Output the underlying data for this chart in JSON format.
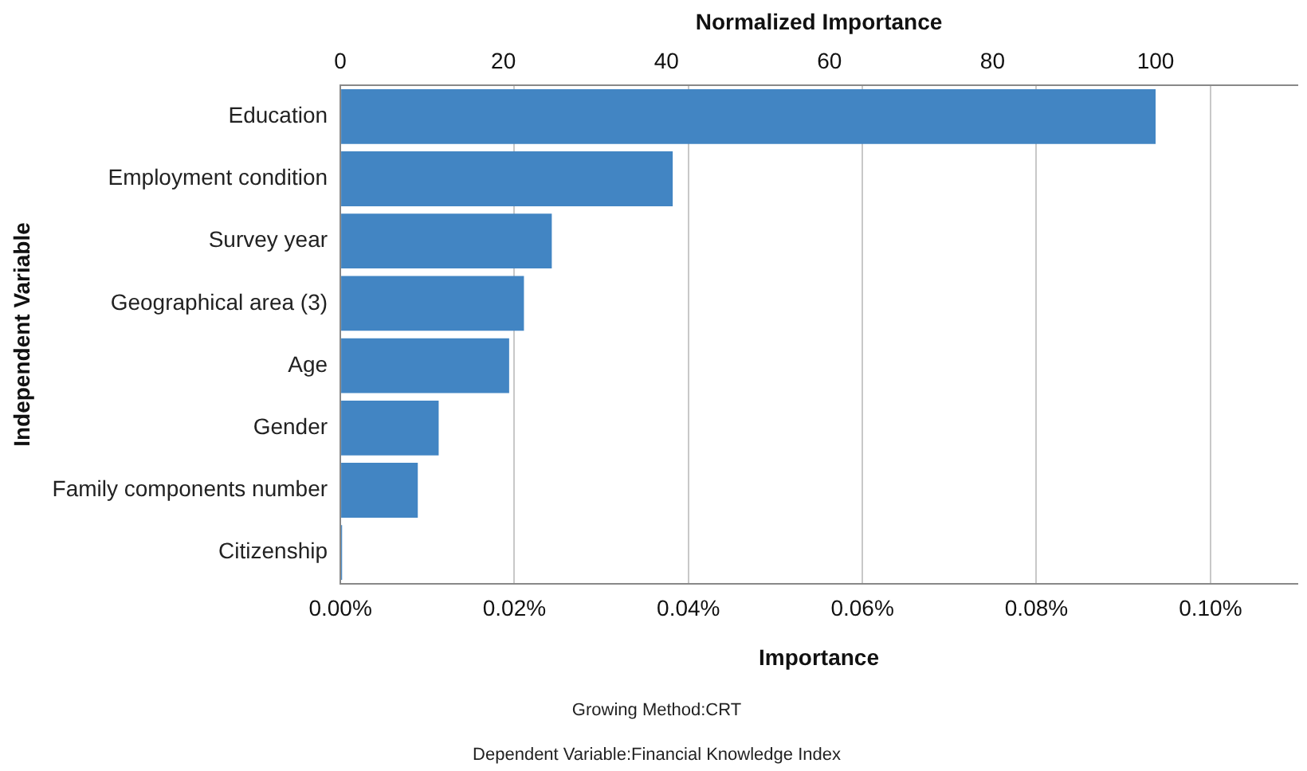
{
  "chart_data": {
    "type": "bar",
    "orientation": "horizontal",
    "categories": [
      "Education",
      "Employment condition",
      "Survey year",
      "Geographical area (3)",
      "Age",
      "Gender",
      "Family components number",
      "Citizenship"
    ],
    "values": [
      0.0937,
      0.0382,
      0.0243,
      0.0211,
      0.0194,
      0.0113,
      0.0089,
      0.0002
    ],
    "color": "#4285c3",
    "xlabel": "Importance",
    "ylabel": "Independent Variable",
    "x2label": "Normalized Importance",
    "xlim": [
      0,
      0.11
    ],
    "xticks": [
      {
        "value": 0,
        "label": "0.00%"
      },
      {
        "value": 0.02,
        "label": "0.02%"
      },
      {
        "value": 0.04,
        "label": "0.04%"
      },
      {
        "value": 0.06,
        "label": "0.06%"
      },
      {
        "value": 0.08,
        "label": "0.08%"
      },
      {
        "value": 0.1,
        "label": "0.10%"
      }
    ],
    "x2lim": [
      0,
      117.4
    ],
    "x2ticks": [
      0,
      20,
      40,
      60,
      80,
      100
    ],
    "grid": "x",
    "legend": false,
    "annotations": [
      "Growing Method:CRT",
      "Dependent Variable:Financial Knowledge Index"
    ]
  }
}
